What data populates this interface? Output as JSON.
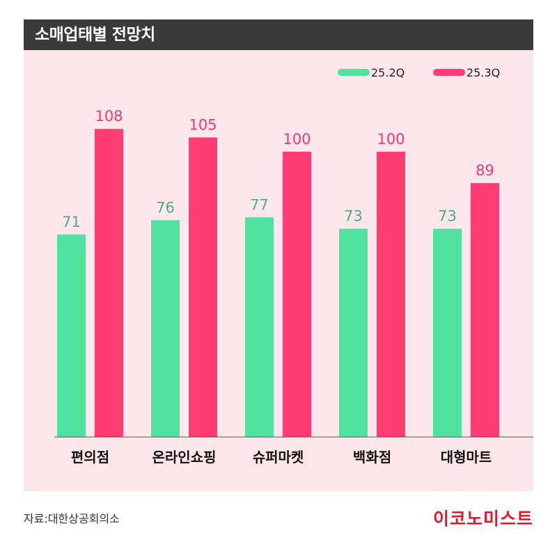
{
  "header": {
    "title": "소매업태별 전망치"
  },
  "footer": {
    "source": "자료:대한상공회의소",
    "brand": "이코노미스트"
  },
  "colors": {
    "series1": "#50e3a0",
    "series2": "#ff3d74",
    "label1": "#4cae7e",
    "label2": "#ec3a73",
    "background": "#fde6ec",
    "title_bar": "#3a3a3a",
    "brand": "#e3192b"
  },
  "chart_data": {
    "type": "bar",
    "title": "소매업태별 전망치",
    "categories": [
      "편의점",
      "온라인쇼핑",
      "슈퍼마켓",
      "백화점",
      "대형마트"
    ],
    "series": [
      {
        "name": "25.2Q",
        "values": [
          71,
          76,
          77,
          73,
          73
        ]
      },
      {
        "name": "25.3Q",
        "values": [
          108,
          105,
          100,
          100,
          89
        ]
      }
    ],
    "xlabel": "",
    "ylabel": "",
    "ylim": [
      0,
      125
    ],
    "grid": false,
    "legend": "top-right",
    "data_labels": true
  }
}
